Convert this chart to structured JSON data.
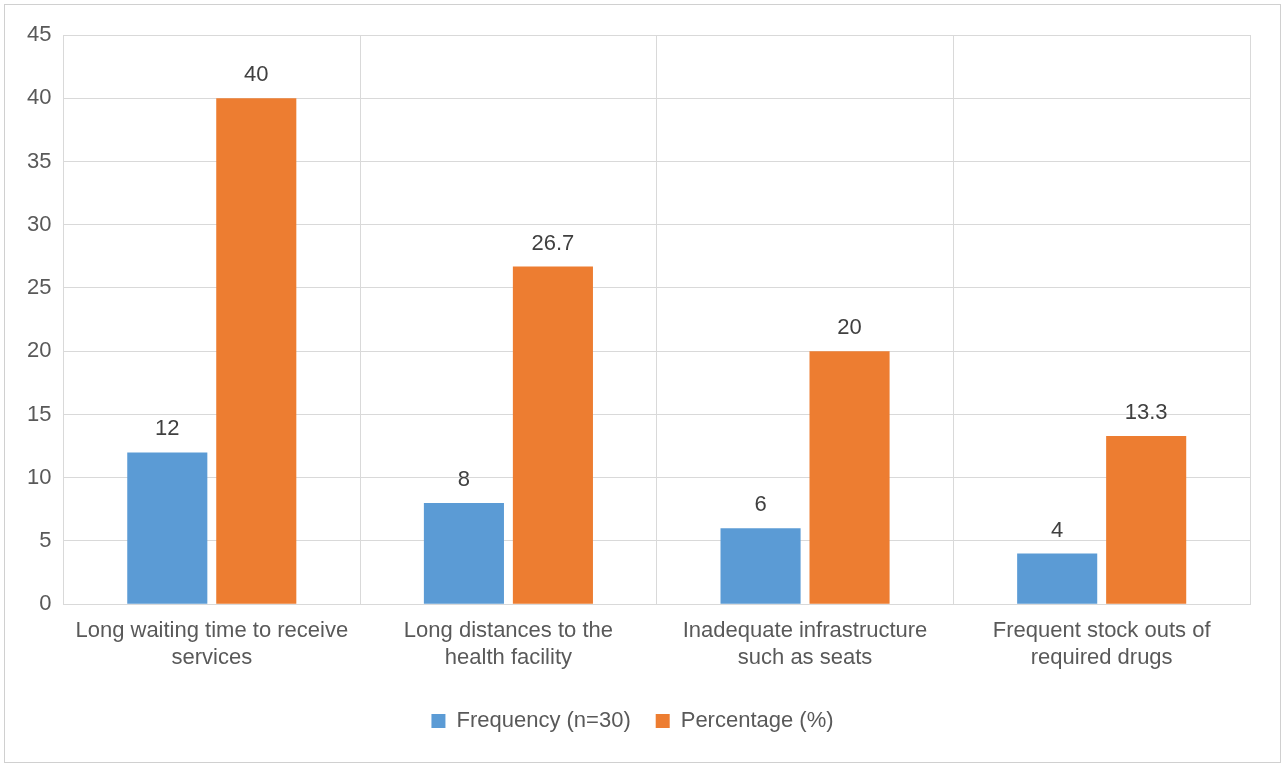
{
  "chart_data": {
    "type": "bar",
    "categories": [
      "Long waiting time to receive services",
      "Long distances to the health facility",
      "Inadequate infrastructure such as seats",
      "Frequent stock outs of required drugs"
    ],
    "series": [
      {
        "name": "Frequency (n=30)",
        "color": "#5b9bd5",
        "values": [
          12,
          8,
          6,
          4
        ]
      },
      {
        "name": "Percentage (%)",
        "color": "#ed7d31",
        "values": [
          40,
          26.7,
          20,
          13.3
        ]
      }
    ],
    "ylim": [
      0,
      45
    ],
    "yticks": [
      0,
      5,
      10,
      15,
      20,
      25,
      30,
      35,
      40,
      45
    ],
    "grid": true,
    "legend": "bottom",
    "data_labels": true
  }
}
